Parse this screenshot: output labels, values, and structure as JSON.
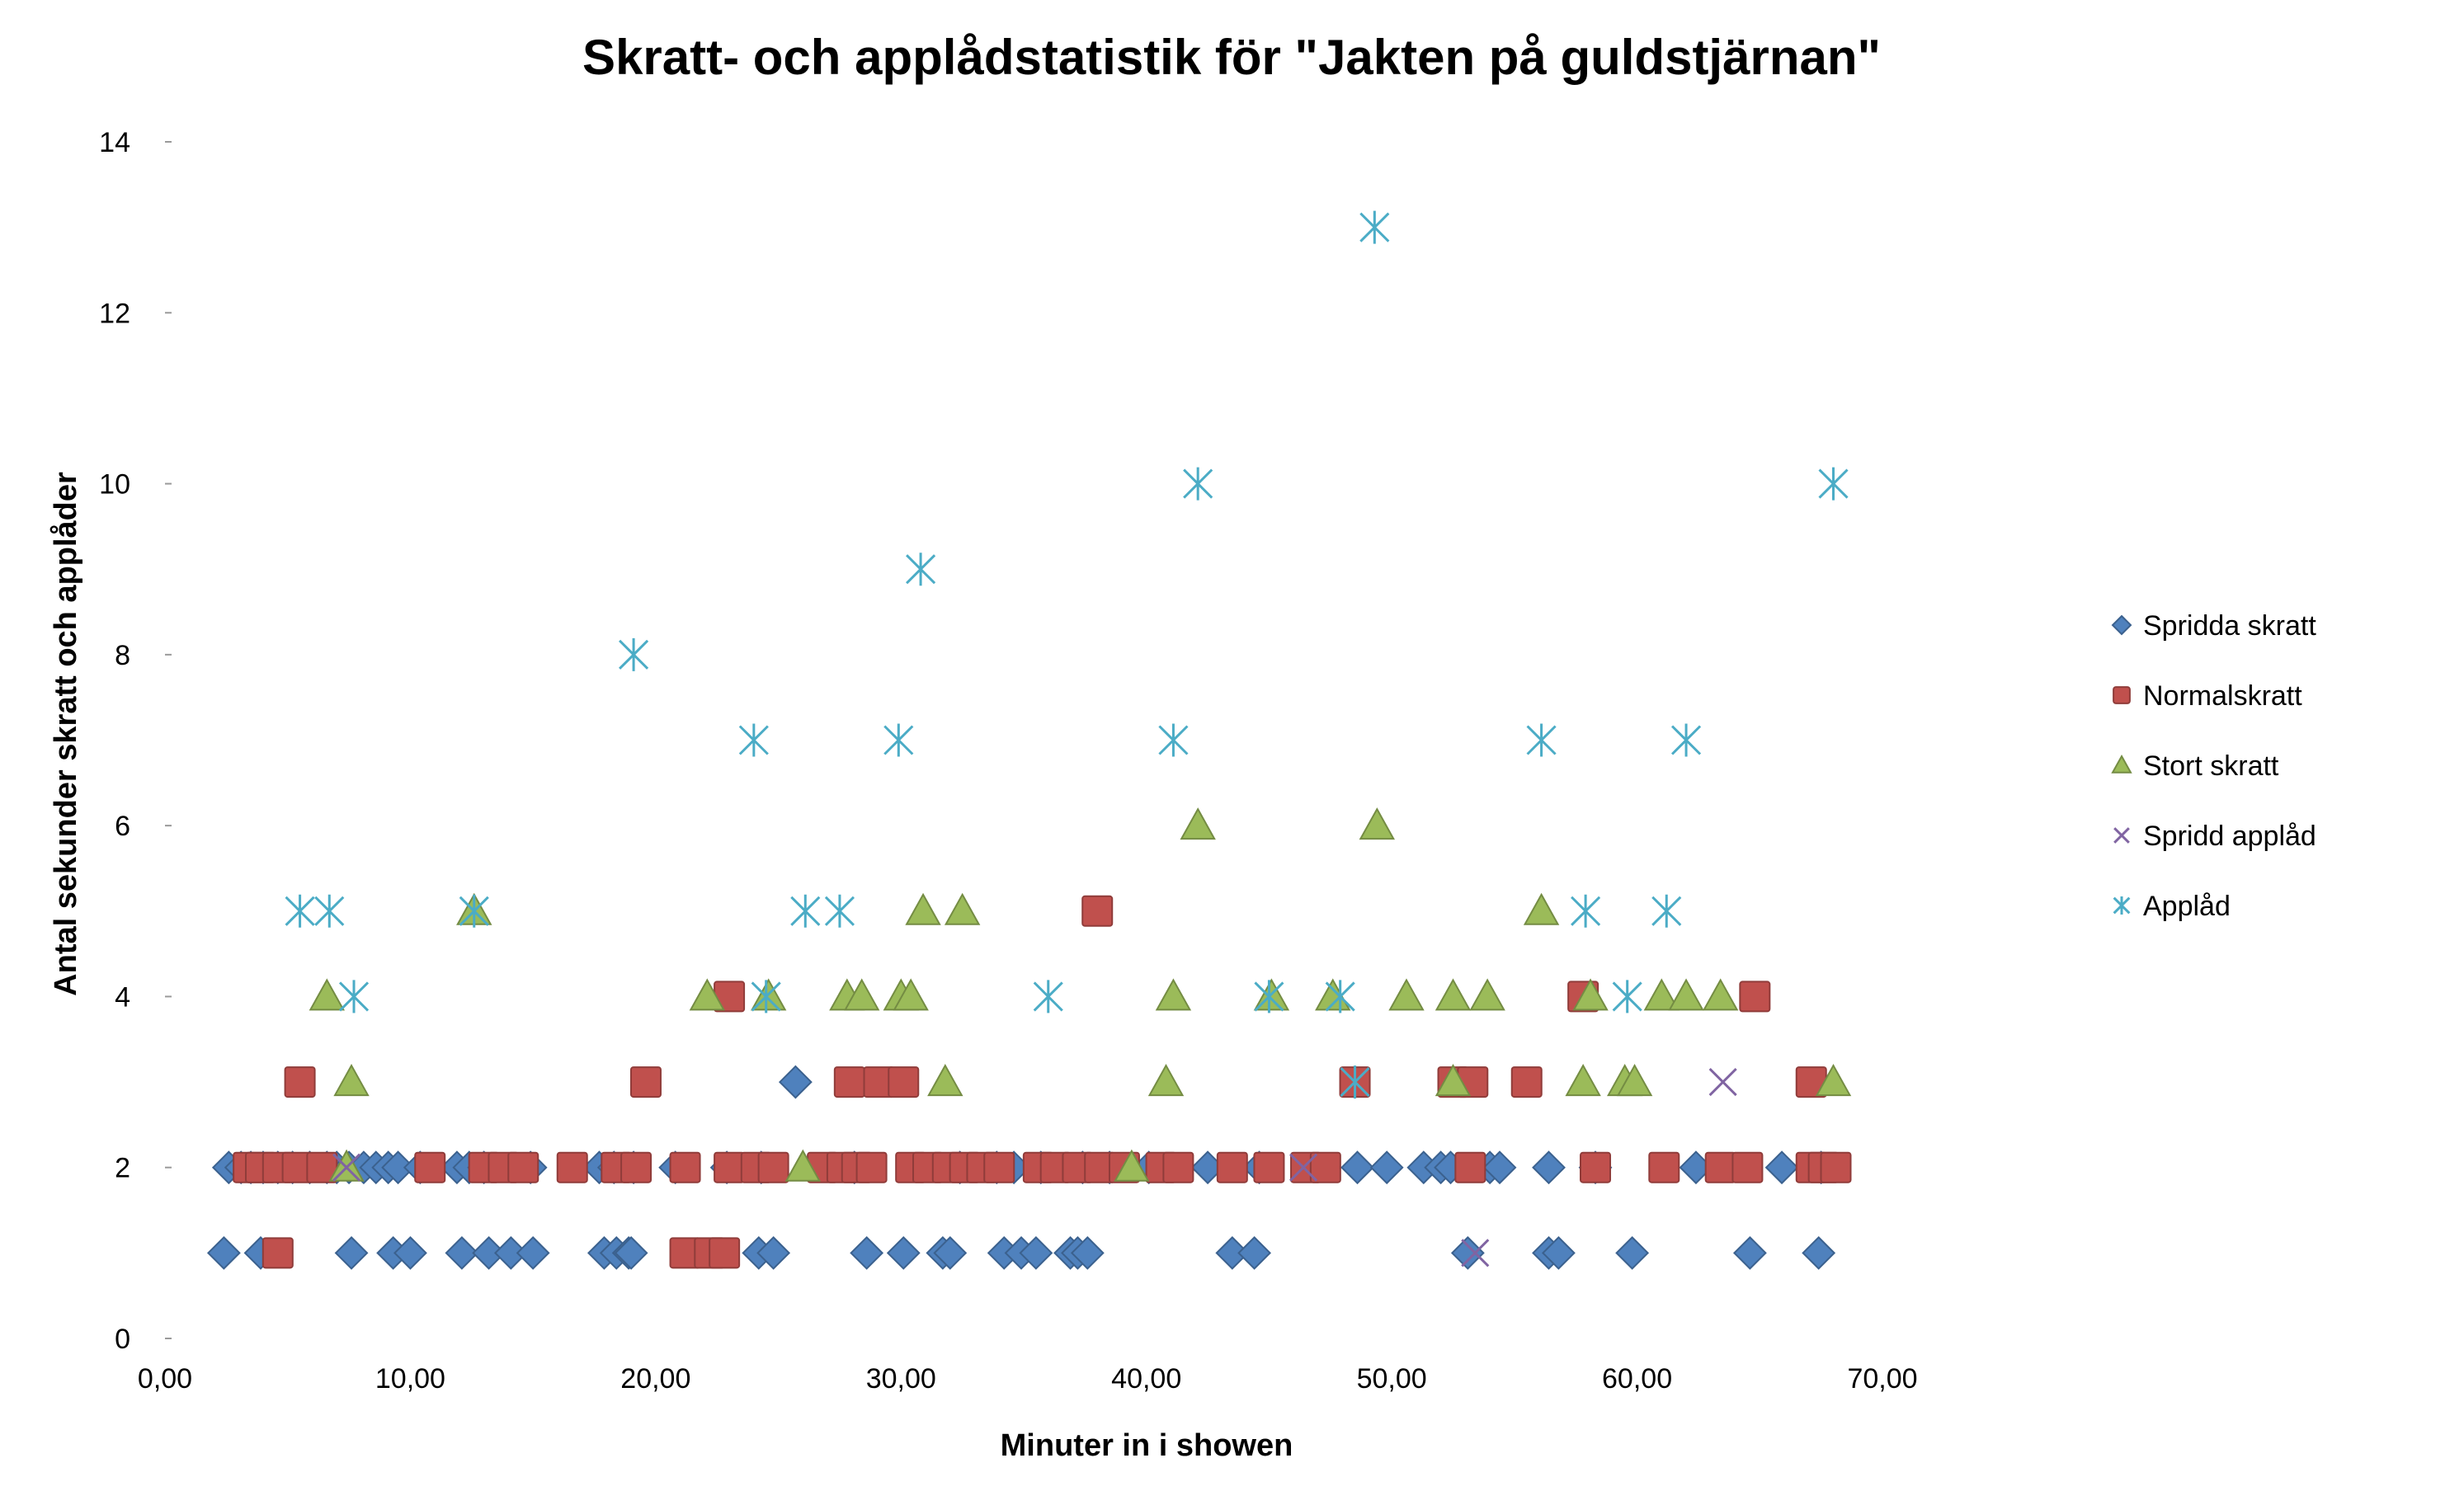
{
  "chart_data": {
    "type": "scatter",
    "title": "Skratt- och applådstatistik för \"Jakten på guldstjärnan\"",
    "xlabel": "Minuter in i showen",
    "ylabel": "Antal sekunder skratt och applåder",
    "xlim": [
      0,
      70
    ],
    "ylim": [
      0,
      14
    ],
    "x_ticks": [
      "0,00",
      "10,00",
      "20,00",
      "30,00",
      "40,00",
      "50,00",
      "60,00",
      "70,00"
    ],
    "y_ticks": [
      "0",
      "2",
      "4",
      "6",
      "8",
      "10",
      "12",
      "14"
    ],
    "grid": false,
    "legend_position": "right",
    "series": [
      {
        "name": "Spridda skratt",
        "marker": "diamond",
        "color": "#4F81BD",
        "points": [
          [
            2.4,
            1
          ],
          [
            3.9,
            1
          ],
          [
            7.6,
            1
          ],
          [
            9.3,
            1
          ],
          [
            10.0,
            1
          ],
          [
            12.1,
            1
          ],
          [
            13.2,
            1
          ],
          [
            14.1,
            1
          ],
          [
            15.0,
            1
          ],
          [
            17.9,
            1
          ],
          [
            18.4,
            1
          ],
          [
            18.9,
            1
          ],
          [
            19.0,
            1
          ],
          [
            24.2,
            1
          ],
          [
            24.8,
            1
          ],
          [
            28.6,
            1
          ],
          [
            30.1,
            1
          ],
          [
            31.7,
            1
          ],
          [
            32.0,
            1
          ],
          [
            34.2,
            1
          ],
          [
            34.9,
            1
          ],
          [
            35.5,
            1
          ],
          [
            36.9,
            1
          ],
          [
            37.2,
            1
          ],
          [
            37.6,
            1
          ],
          [
            43.5,
            1
          ],
          [
            44.4,
            1
          ],
          [
            53.1,
            1
          ],
          [
            56.4,
            1
          ],
          [
            56.8,
            1
          ],
          [
            59.8,
            1
          ],
          [
            64.6,
            1
          ],
          [
            67.4,
            1
          ],
          [
            2.6,
            2
          ],
          [
            3.1,
            2
          ],
          [
            3.5,
            2
          ],
          [
            4.0,
            2
          ],
          [
            4.6,
            2
          ],
          [
            5.2,
            2
          ],
          [
            5.9,
            2
          ],
          [
            6.6,
            2
          ],
          [
            7.0,
            2
          ],
          [
            7.5,
            2
          ],
          [
            8.1,
            2
          ],
          [
            8.6,
            2
          ],
          [
            9.1,
            2
          ],
          [
            9.5,
            2
          ],
          [
            10.4,
            2
          ],
          [
            11.9,
            2
          ],
          [
            12.4,
            2
          ],
          [
            13.0,
            2
          ],
          [
            14.9,
            2
          ],
          [
            17.7,
            2
          ],
          [
            18.3,
            2
          ],
          [
            19.1,
            2
          ],
          [
            20.8,
            2
          ],
          [
            22.9,
            2
          ],
          [
            24.3,
            2
          ],
          [
            28.1,
            2
          ],
          [
            32.4,
            2
          ],
          [
            33.9,
            2
          ],
          [
            34.6,
            2
          ],
          [
            35.7,
            2
          ],
          [
            37.4,
            2
          ],
          [
            38.5,
            2
          ],
          [
            40.1,
            2
          ],
          [
            42.5,
            2
          ],
          [
            44.6,
            2
          ],
          [
            48.6,
            2
          ],
          [
            49.8,
            2
          ],
          [
            51.3,
            2
          ],
          [
            52.0,
            2
          ],
          [
            52.4,
            2
          ],
          [
            54.0,
            2
          ],
          [
            54.4,
            2
          ],
          [
            56.4,
            2
          ],
          [
            58.3,
            2
          ],
          [
            62.4,
            2
          ],
          [
            65.9,
            2
          ],
          [
            67.5,
            2
          ],
          [
            25.7,
            3
          ]
        ]
      },
      {
        "name": "Normalskratt",
        "marker": "square",
        "color": "#C0504D",
        "points": [
          [
            4.6,
            1
          ],
          [
            21.2,
            1
          ],
          [
            22.2,
            1
          ],
          [
            22.8,
            1
          ],
          [
            3.4,
            2
          ],
          [
            3.9,
            2
          ],
          [
            4.6,
            2
          ],
          [
            5.4,
            2
          ],
          [
            6.4,
            2
          ],
          [
            10.8,
            2
          ],
          [
            13.0,
            2
          ],
          [
            13.8,
            2
          ],
          [
            14.6,
            2
          ],
          [
            16.6,
            2
          ],
          [
            18.4,
            2
          ],
          [
            19.2,
            2
          ],
          [
            21.2,
            2
          ],
          [
            23.0,
            2
          ],
          [
            24.1,
            2
          ],
          [
            24.8,
            2
          ],
          [
            26.8,
            2
          ],
          [
            27.6,
            2
          ],
          [
            28.2,
            2
          ],
          [
            28.8,
            2
          ],
          [
            30.4,
            2
          ],
          [
            31.1,
            2
          ],
          [
            31.9,
            2
          ],
          [
            32.6,
            2
          ],
          [
            33.3,
            2
          ],
          [
            34.0,
            2
          ],
          [
            35.6,
            2
          ],
          [
            36.3,
            2
          ],
          [
            37.2,
            2
          ],
          [
            38.1,
            2
          ],
          [
            39.1,
            2
          ],
          [
            40.6,
            2
          ],
          [
            41.3,
            2
          ],
          [
            43.5,
            2
          ],
          [
            45.0,
            2
          ],
          [
            46.5,
            2
          ],
          [
            47.3,
            2
          ],
          [
            53.2,
            2
          ],
          [
            58.3,
            2
          ],
          [
            61.1,
            2
          ],
          [
            63.4,
            2
          ],
          [
            64.5,
            2
          ],
          [
            67.1,
            2
          ],
          [
            67.6,
            2
          ],
          [
            68.1,
            2
          ],
          [
            5.5,
            3
          ],
          [
            19.6,
            3
          ],
          [
            27.9,
            3
          ],
          [
            29.1,
            3
          ],
          [
            30.1,
            3
          ],
          [
            48.5,
            3
          ],
          [
            52.5,
            3
          ],
          [
            53.3,
            3
          ],
          [
            55.5,
            3
          ],
          [
            67.1,
            3
          ],
          [
            23.0,
            4
          ],
          [
            57.8,
            4
          ],
          [
            64.8,
            4
          ],
          [
            38.0,
            5
          ]
        ]
      },
      {
        "name": "Stort skratt",
        "marker": "triangle",
        "color": "#9BBB59",
        "points": [
          [
            7.4,
            2
          ],
          [
            26.0,
            2
          ],
          [
            39.4,
            2
          ],
          [
            7.6,
            3
          ],
          [
            31.8,
            3
          ],
          [
            40.8,
            3
          ],
          [
            52.5,
            3
          ],
          [
            57.8,
            3
          ],
          [
            59.5,
            3
          ],
          [
            59.9,
            3
          ],
          [
            68.0,
            3
          ],
          [
            6.6,
            4
          ],
          [
            22.1,
            4
          ],
          [
            24.6,
            4
          ],
          [
            27.8,
            4
          ],
          [
            28.4,
            4
          ],
          [
            30.0,
            4
          ],
          [
            30.4,
            4
          ],
          [
            41.1,
            4
          ],
          [
            45.1,
            4
          ],
          [
            47.6,
            4
          ],
          [
            50.6,
            4
          ],
          [
            52.5,
            4
          ],
          [
            53.9,
            4
          ],
          [
            58.1,
            4
          ],
          [
            61.0,
            4
          ],
          [
            62.0,
            4
          ],
          [
            63.4,
            4
          ],
          [
            12.6,
            5
          ],
          [
            30.9,
            5
          ],
          [
            32.5,
            5
          ],
          [
            56.1,
            5
          ],
          [
            42.1,
            6
          ],
          [
            49.4,
            6
          ]
        ]
      },
      {
        "name": "Spridd applåd",
        "marker": "x",
        "color": "#8064A2",
        "points": [
          [
            7.4,
            2
          ],
          [
            46.4,
            2
          ],
          [
            53.4,
            1
          ],
          [
            63.5,
            3
          ]
        ]
      },
      {
        "name": "Applåd",
        "marker": "asterisk",
        "color": "#4BACC6",
        "points": [
          [
            7.7,
            4
          ],
          [
            24.5,
            4
          ],
          [
            36.0,
            4
          ],
          [
            45.0,
            4
          ],
          [
            47.9,
            4
          ],
          [
            59.6,
            4
          ],
          [
            48.5,
            3
          ],
          [
            5.5,
            5
          ],
          [
            6.7,
            5
          ],
          [
            12.6,
            5
          ],
          [
            26.1,
            5
          ],
          [
            27.5,
            5
          ],
          [
            57.9,
            5
          ],
          [
            61.2,
            5
          ],
          [
            24.0,
            7
          ],
          [
            29.9,
            7
          ],
          [
            41.1,
            7
          ],
          [
            56.1,
            7
          ],
          [
            62.0,
            7
          ],
          [
            19.1,
            8
          ],
          [
            30.8,
            9
          ],
          [
            42.1,
            10
          ],
          [
            68.0,
            10
          ],
          [
            49.3,
            13
          ]
        ]
      }
    ]
  }
}
